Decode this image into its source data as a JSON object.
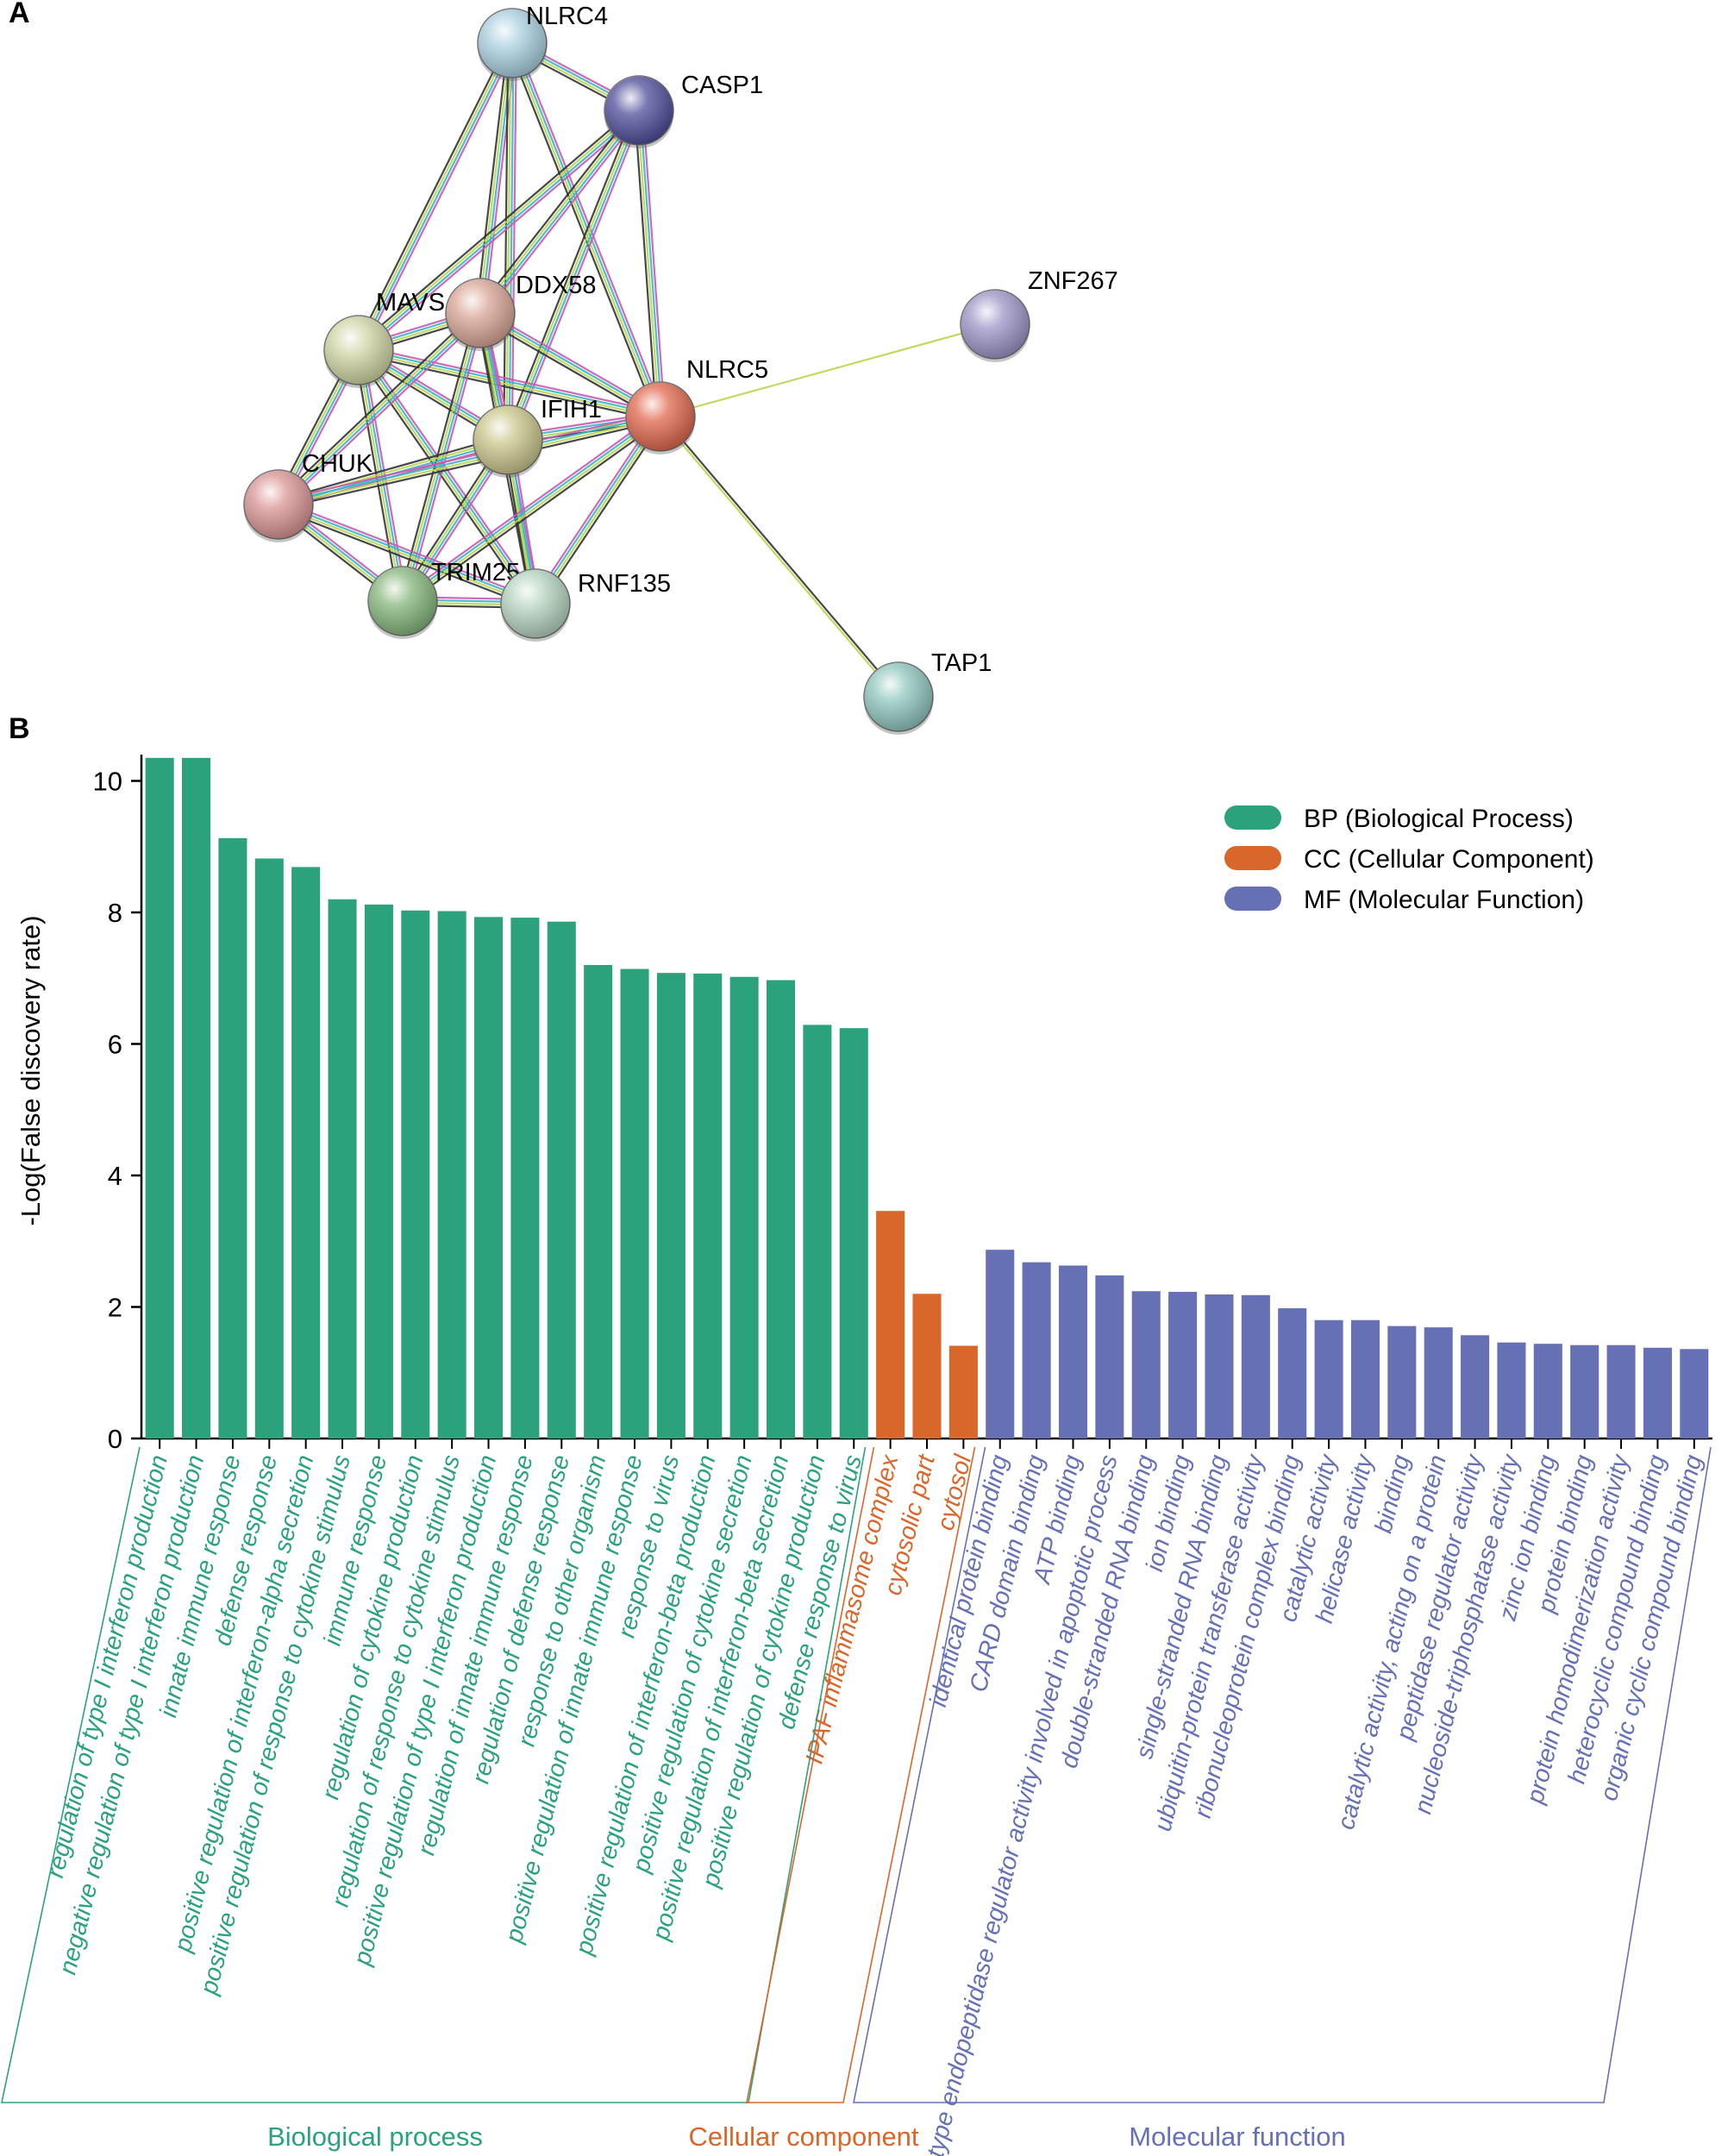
{
  "panel_a": {
    "label": "A",
    "nodes": [
      {
        "name": "NLRC4",
        "color": "#a9cfe0"
      },
      {
        "name": "CASP1",
        "color": "#4f4d9a"
      },
      {
        "name": "DDX58",
        "color": "#d9a596"
      },
      {
        "name": "MAVS",
        "color": "#cfd5a3"
      },
      {
        "name": "ZNF267",
        "color": "#9d95c8"
      },
      {
        "name": "NLRC5",
        "color": "#e0674c"
      },
      {
        "name": "IFIH1",
        "color": "#c9c589"
      },
      {
        "name": "CHUK",
        "color": "#d99393"
      },
      {
        "name": "TRIM25",
        "color": "#86b57c"
      },
      {
        "name": "RNF135",
        "color": "#b5d3bf"
      },
      {
        "name": "TAP1",
        "color": "#8ec6bd"
      }
    ],
    "edges": [
      [
        "NLRC4",
        "CASP1"
      ],
      [
        "NLRC4",
        "MAVS"
      ],
      [
        "NLRC4",
        "DDX58"
      ],
      [
        "NLRC4",
        "IFIH1"
      ],
      [
        "NLRC4",
        "NLRC5"
      ],
      [
        "CASP1",
        "MAVS"
      ],
      [
        "CASP1",
        "DDX58"
      ],
      [
        "CASP1",
        "IFIH1"
      ],
      [
        "CASP1",
        "NLRC5"
      ],
      [
        "MAVS",
        "DDX58"
      ],
      [
        "MAVS",
        "IFIH1"
      ],
      [
        "MAVS",
        "CHUK"
      ],
      [
        "MAVS",
        "TRIM25"
      ],
      [
        "MAVS",
        "RNF135"
      ],
      [
        "MAVS",
        "NLRC5"
      ],
      [
        "DDX58",
        "IFIH1"
      ],
      [
        "DDX58",
        "CHUK"
      ],
      [
        "DDX58",
        "TRIM25"
      ],
      [
        "DDX58",
        "RNF135"
      ],
      [
        "DDX58",
        "NLRC5"
      ],
      [
        "IFIH1",
        "CHUK"
      ],
      [
        "IFIH1",
        "TRIM25"
      ],
      [
        "IFIH1",
        "RNF135"
      ],
      [
        "IFIH1",
        "NLRC5"
      ],
      [
        "CHUK",
        "TRIM25"
      ],
      [
        "CHUK",
        "RNF135"
      ],
      [
        "CHUK",
        "NLRC5"
      ],
      [
        "TRIM25",
        "RNF135"
      ],
      [
        "TRIM25",
        "NLRC5"
      ],
      [
        "RNF135",
        "NLRC5"
      ],
      [
        "NLRC5",
        "ZNF267"
      ],
      [
        "NLRC5",
        "TAP1"
      ]
    ]
  },
  "panel_b": {
    "label": "B"
  },
  "chart_data": {
    "type": "bar",
    "ylabel": "-Log(False discovery rate)",
    "ylim": [
      0,
      10.4
    ],
    "yticks": [
      0,
      2,
      4,
      6,
      8,
      10
    ],
    "grid": false,
    "legend_position": "top-right",
    "legend": [
      {
        "label": "BP (Biological Process)",
        "color": "#2ba27b"
      },
      {
        "label": "CC (Cellular Component)",
        "color": "#d9662b"
      },
      {
        "label": "MF (Molecular Function)",
        "color": "#6670b5"
      }
    ],
    "groups": [
      {
        "name": "Biological process",
        "color": "#2ba27b",
        "start": 0,
        "end": 19
      },
      {
        "name": "Cellular component",
        "color": "#d9662b",
        "start": 20,
        "end": 22
      },
      {
        "name": "Molecular function",
        "color": "#6670b5",
        "start": 23,
        "end": 42
      }
    ],
    "categories": [
      "regulation of type I interferon production",
      "negative regulation of type I interferon production",
      "innate immune response",
      "defense response",
      "positive regulation of interferon-alpha secretion",
      "positive regulation of response to cytokine stimulus",
      "immune response",
      "regulation of cytokine production",
      "regulation of response to cytokine stimulus",
      "positive regulation of type I interferon production",
      "regulation of innate immune response",
      "regulation of defense response",
      "response to other organism",
      "positive regulation of innate immune response",
      "response to virus",
      "positive regulation of interferon-beta production",
      "positive regulation of cytokine secretion",
      "positive regulation of interferon-beta secretion",
      "positive regulation of cytokine production",
      "defense response to virus",
      "IPAF inflammasome complex",
      "cytosolic part",
      "cytosol",
      "identical protein binding",
      "CARD domain binding",
      "ATP binding",
      "cysteine-type endopeptidase regulator activity involved in apoptotic process",
      "double-stranded RNA binding",
      "ion binding",
      "single-stranded RNA binding",
      "ubiquitin-protein transferase activity",
      "ribonucleoprotein complex binding",
      "catalytic activity",
      "helicase activity",
      "binding",
      "catalytic activity, acting on a protein",
      "peptidase regulator activity",
      "nucleoside-triphosphatase activity",
      "zinc ion binding",
      "protein binding",
      "protein homodimerization activity",
      "heterocyclic compound binding",
      "organic cyclic compound binding"
    ],
    "values": [
      10.35,
      10.35,
      9.13,
      8.82,
      8.69,
      8.2,
      8.12,
      8.03,
      8.02,
      7.93,
      7.92,
      7.86,
      7.2,
      7.14,
      7.08,
      7.07,
      7.02,
      6.97,
      6.29,
      6.24,
      3.46,
      2.2,
      1.41,
      2.87,
      2.68,
      2.63,
      2.48,
      2.24,
      2.23,
      2.19,
      2.18,
      1.98,
      1.8,
      1.8,
      1.71,
      1.69,
      1.57,
      1.46,
      1.44,
      1.42,
      1.42,
      1.38,
      1.36
    ],
    "groups_index": [
      0,
      0,
      0,
      0,
      0,
      0,
      0,
      0,
      0,
      0,
      0,
      0,
      0,
      0,
      0,
      0,
      0,
      0,
      0,
      0,
      1,
      1,
      1,
      2,
      2,
      2,
      2,
      2,
      2,
      2,
      2,
      2,
      2,
      2,
      2,
      2,
      2,
      2,
      2,
      2,
      2,
      2,
      2
    ]
  }
}
